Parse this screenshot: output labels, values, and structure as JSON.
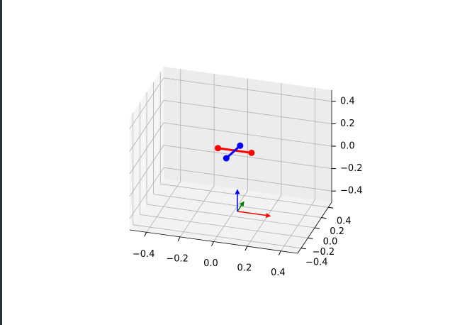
{
  "chart_data": {
    "type": "scatter3d",
    "xlim": [
      -0.5,
      0.5
    ],
    "ylim": [
      -0.5,
      0.5
    ],
    "zlim": [
      -0.5,
      0.5
    ],
    "xticks": [
      {
        "value": -0.4,
        "label": "−0.4"
      },
      {
        "value": -0.2,
        "label": "−0.2"
      },
      {
        "value": 0,
        "label": "0.0"
      },
      {
        "value": 0.2,
        "label": "0.2"
      },
      {
        "value": 0.4,
        "label": "0.4"
      }
    ],
    "yticks": [
      {
        "value": -0.4,
        "label": "−0.4"
      },
      {
        "value": -0.2,
        "label": "−0.2"
      },
      {
        "value": 0,
        "label": "0.0"
      },
      {
        "value": 0.2,
        "label": "0.2"
      },
      {
        "value": 0.4,
        "label": "0.4"
      }
    ],
    "zticks": [
      {
        "value": -0.4,
        "label": "−0.4"
      },
      {
        "value": -0.2,
        "label": "−0.2"
      },
      {
        "value": 0,
        "label": "0.0"
      },
      {
        "value": 0.2,
        "label": "0.2"
      },
      {
        "value": 0.4,
        "label": "0.4"
      }
    ],
    "grid": true,
    "lines": [
      {
        "color": "#ff0000",
        "x": [
          -0.08,
          0.12
        ],
        "y": [
          0.02,
          0.02
        ],
        "z": [
          0.08,
          0.08
        ]
      },
      {
        "color": "#0000ff",
        "x": [
          -0.01,
          0.04
        ],
        "y": [
          -0.08,
          0.08
        ],
        "z": [
          0.05,
          0.1
        ]
      }
    ],
    "quivers": [
      {
        "color": "#ff0000",
        "x": 0.04,
        "y": 0,
        "z": -0.45,
        "u": 0.2,
        "v": 0,
        "w": 0
      },
      {
        "color": "#008000",
        "x": 0.04,
        "y": 0,
        "z": -0.45,
        "u": 0,
        "v": 0.2,
        "w": 0
      },
      {
        "color": "#0000ff",
        "x": 0.04,
        "y": 0,
        "z": -0.45,
        "u": 0,
        "v": 0,
        "w": 0.2
      }
    ]
  }
}
